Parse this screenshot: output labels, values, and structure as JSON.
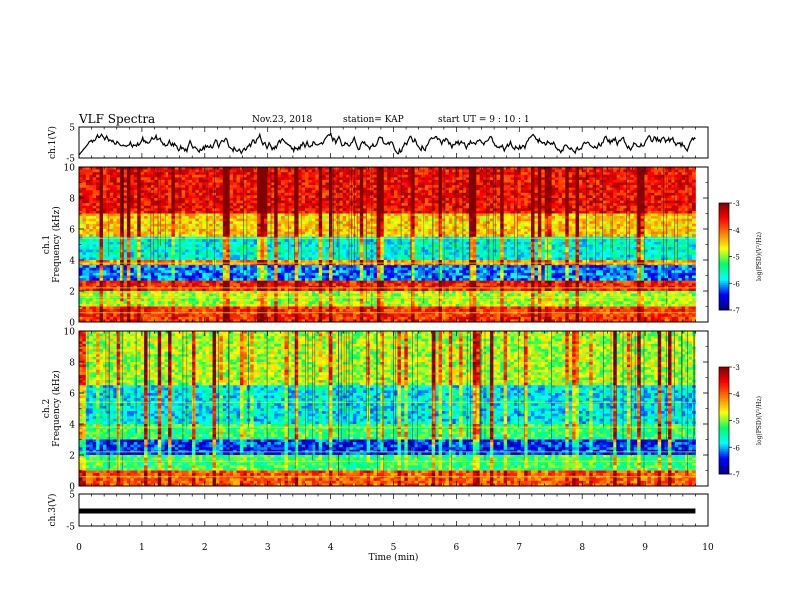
{
  "header": {
    "title": "VLF Spectra",
    "date": "Nov.23, 2018",
    "station": "station= KAP",
    "start": "start  UT  =   9  : 10 : 1"
  },
  "chart_data": [
    {
      "type": "line",
      "panel": "ch1_waveform",
      "ylabel": "ch.1(V)",
      "ylim": [
        -5,
        5
      ],
      "yticks": [
        "5",
        "-5"
      ],
      "xlim": [
        0,
        10
      ],
      "series": [
        {
          "values_description_free": true,
          "x_range": [
            0,
            9.8
          ],
          "y_typical": [
            -3,
            2
          ]
        }
      ]
    },
    {
      "type": "heatmap",
      "panel": "ch1_spectrogram",
      "ylabel": "ch.1\nFrequency  (kHz)",
      "ylim": [
        0,
        10
      ],
      "yticks": [
        "0",
        "2",
        "4",
        "6",
        "8",
        "10"
      ],
      "xlim": [
        0,
        10
      ],
      "data_extent_x": [
        0,
        9.8
      ],
      "colorbar": {
        "label": "log(PSD)(V²/Hz)",
        "range": [
          -7,
          -3
        ],
        "ticks": [
          "-3",
          "-4",
          "-5",
          "-6",
          "-7"
        ]
      },
      "band_structure": [
        {
          "f": [
            0,
            1.0
          ],
          "level": -3.8
        },
        {
          "f": [
            1.0,
            2.0
          ],
          "level": -4.9
        },
        {
          "f": [
            2.0,
            2.6
          ],
          "level": -3.7
        },
        {
          "f": [
            2.6,
            3.6
          ],
          "level": -6.2
        },
        {
          "f": [
            3.6,
            4.0
          ],
          "level": -4.2
        },
        {
          "f": [
            4.0,
            5.5
          ],
          "level": -5.7
        },
        {
          "f": [
            5.5,
            7.0
          ],
          "level": -4.5
        },
        {
          "f": [
            7.0,
            10.0
          ],
          "level": -3.6
        }
      ]
    },
    {
      "type": "heatmap",
      "panel": "ch2_spectrogram",
      "ylabel": "ch.2\nFrequency  (kHz)",
      "ylim": [
        0,
        10
      ],
      "yticks": [
        "0",
        "2",
        "4",
        "6",
        "8",
        "10"
      ],
      "xlim": [
        0,
        10
      ],
      "data_extent_x": [
        0,
        9.8
      ],
      "colorbar": {
        "label": "log(PSD)(V²/Hz)",
        "range": [
          -7,
          -3
        ],
        "ticks": [
          "-3",
          "-4",
          "-5",
          "-6",
          "-7"
        ]
      },
      "band_structure": [
        {
          "f": [
            0,
            1.0
          ],
          "level": -4.0
        },
        {
          "f": [
            1.0,
            2.0
          ],
          "level": -5.3
        },
        {
          "f": [
            2.0,
            3.0
          ],
          "level": -6.4
        },
        {
          "f": [
            3.0,
            4.0
          ],
          "level": -5.3
        },
        {
          "f": [
            4.0,
            6.5
          ],
          "level": -5.8
        },
        {
          "f": [
            6.5,
            10.0
          ],
          "level": -4.9
        }
      ]
    },
    {
      "type": "line",
      "panel": "ch3_waveform",
      "ylabel": "ch.3(V)",
      "ylim": [
        -5,
        5
      ],
      "yticks": [
        "5",
        "-5"
      ],
      "xlim": [
        0,
        10
      ],
      "series": [
        {
          "x_range": [
            0,
            9.8
          ],
          "y_constant": 0
        }
      ]
    }
  ],
  "xaxis": {
    "label": "Time  (min)",
    "ticks": [
      "0",
      "1",
      "2",
      "3",
      "4",
      "5",
      "6",
      "7",
      "8",
      "9",
      "10"
    ]
  },
  "colors": {
    "colormap": [
      "#00007f",
      "#0000ff",
      "#00ffff",
      "#00ff66",
      "#ffff00",
      "#ff7f00",
      "#ff0000",
      "#7f0000"
    ],
    "line": "#000000"
  }
}
